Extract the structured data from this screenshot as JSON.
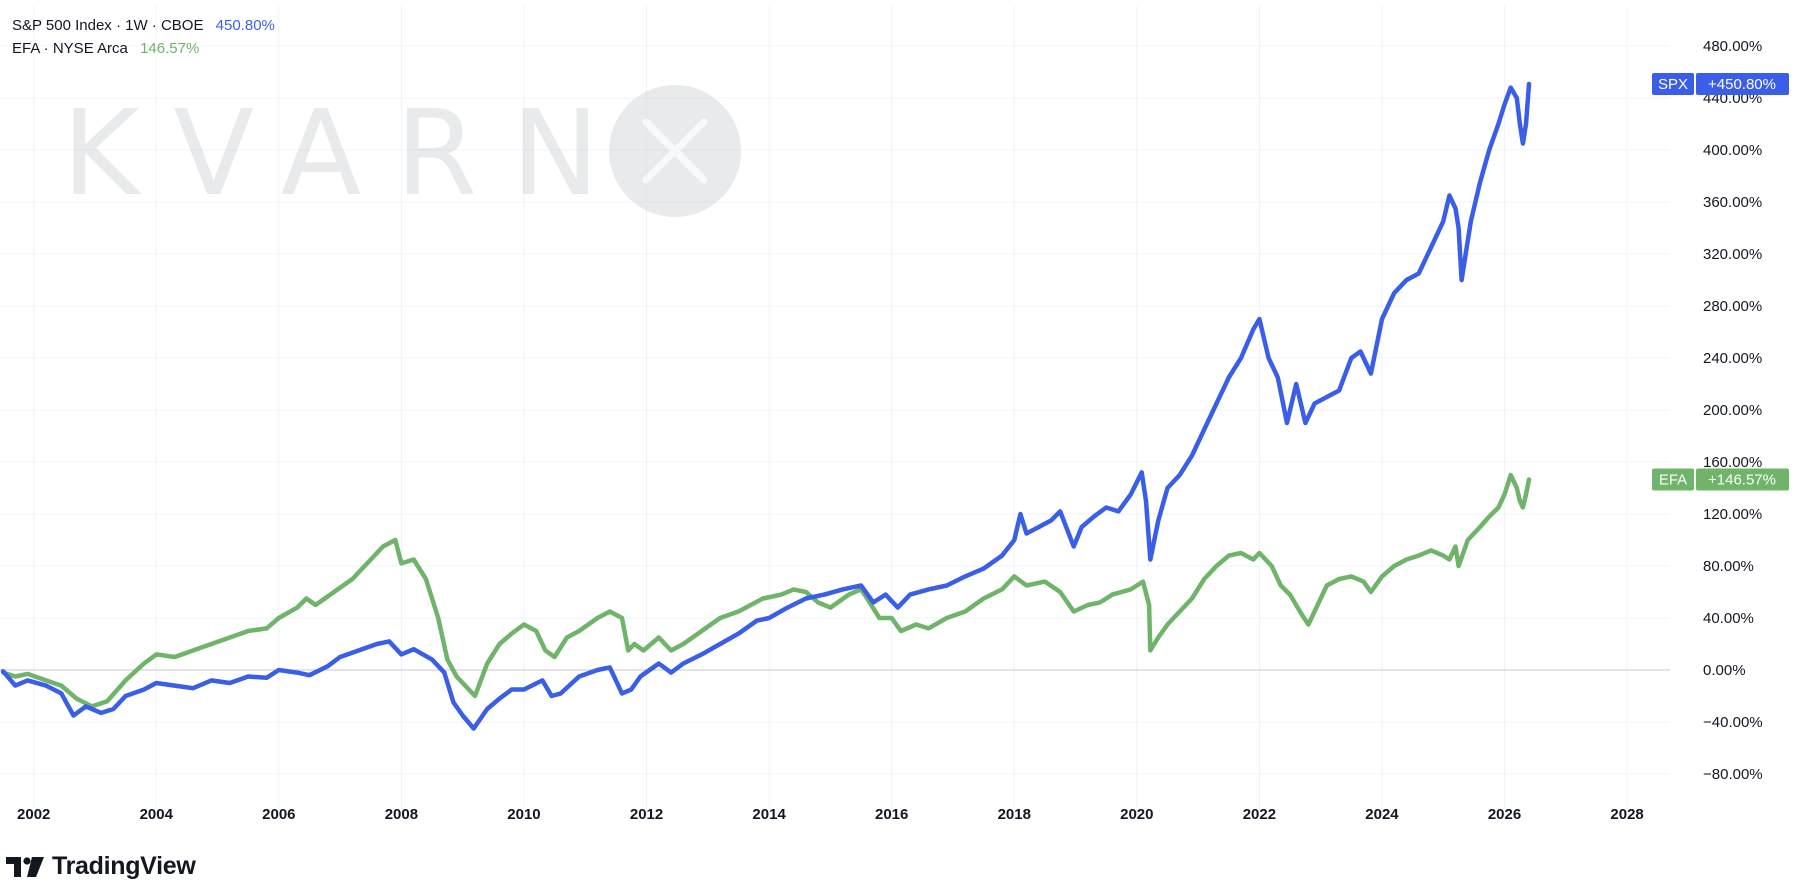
{
  "legend": {
    "spx": {
      "name": "S&P 500 Index · 1W · CBOE",
      "value": "450.80%"
    },
    "efa": {
      "name": "EFA · NYSE Arca",
      "value": "146.57%"
    }
  },
  "watermark": {
    "text": "KVARN"
  },
  "branding": {
    "logo_text": "TradingView"
  },
  "colors": {
    "spx": "#3a5ee8",
    "efa": "#6fb46a",
    "grid": "#f0f3fa",
    "zero_line": "#c8c9cc"
  },
  "chart_data": {
    "type": "line",
    "title": "",
    "xlabel": "",
    "ylabel": "",
    "x_ticks": [
      "2002",
      "2004",
      "2006",
      "2008",
      "2010",
      "2012",
      "2014",
      "2016",
      "2018",
      "2020",
      "2022",
      "2024",
      "2026",
      "2028"
    ],
    "y_ticks": [
      "480.00%",
      "440.00%",
      "400.00%",
      "360.00%",
      "320.00%",
      "280.00%",
      "240.00%",
      "200.00%",
      "160.00%",
      "120.00%",
      "80.00%",
      "40.00%",
      "0.00%",
      "−40.00%",
      "−80.00%"
    ],
    "xlim": [
      2001.45,
      2028.7
    ],
    "ylim": [
      -100,
      500
    ],
    "grid": true,
    "series": [
      {
        "name": "SPX",
        "badge": "+450.80%",
        "points": [
          [
            2001.5,
            -1
          ],
          [
            2001.7,
            -12
          ],
          [
            2001.9,
            -8
          ],
          [
            2002.2,
            -12
          ],
          [
            2002.45,
            -18
          ],
          [
            2002.65,
            -35
          ],
          [
            2002.85,
            -28
          ],
          [
            2003.1,
            -33
          ],
          [
            2003.3,
            -30
          ],
          [
            2003.5,
            -20
          ],
          [
            2003.8,
            -15
          ],
          [
            2004.0,
            -10
          ],
          [
            2004.3,
            -12
          ],
          [
            2004.6,
            -14
          ],
          [
            2004.9,
            -8
          ],
          [
            2005.2,
            -10
          ],
          [
            2005.5,
            -5
          ],
          [
            2005.8,
            -6
          ],
          [
            2006.0,
            0
          ],
          [
            2006.3,
            -2
          ],
          [
            2006.5,
            -4
          ],
          [
            2006.8,
            3
          ],
          [
            2007.0,
            10
          ],
          [
            2007.3,
            15
          ],
          [
            2007.6,
            20
          ],
          [
            2007.8,
            22
          ],
          [
            2008.0,
            12
          ],
          [
            2008.2,
            16
          ],
          [
            2008.5,
            8
          ],
          [
            2008.7,
            -2
          ],
          [
            2008.85,
            -25
          ],
          [
            2009.0,
            -35
          ],
          [
            2009.18,
            -45
          ],
          [
            2009.4,
            -30
          ],
          [
            2009.6,
            -22
          ],
          [
            2009.8,
            -15
          ],
          [
            2010.0,
            -15
          ],
          [
            2010.3,
            -8
          ],
          [
            2010.45,
            -20
          ],
          [
            2010.6,
            -18
          ],
          [
            2010.9,
            -5
          ],
          [
            2011.2,
            0
          ],
          [
            2011.4,
            2
          ],
          [
            2011.6,
            -18
          ],
          [
            2011.75,
            -15
          ],
          [
            2011.9,
            -5
          ],
          [
            2012.2,
            5
          ],
          [
            2012.4,
            -2
          ],
          [
            2012.6,
            5
          ],
          [
            2012.9,
            12
          ],
          [
            2013.2,
            20
          ],
          [
            2013.5,
            28
          ],
          [
            2013.8,
            38
          ],
          [
            2014.0,
            40
          ],
          [
            2014.3,
            48
          ],
          [
            2014.6,
            55
          ],
          [
            2014.9,
            58
          ],
          [
            2015.2,
            62
          ],
          [
            2015.5,
            65
          ],
          [
            2015.7,
            52
          ],
          [
            2015.9,
            58
          ],
          [
            2016.1,
            48
          ],
          [
            2016.3,
            58
          ],
          [
            2016.6,
            62
          ],
          [
            2016.9,
            65
          ],
          [
            2017.2,
            72
          ],
          [
            2017.5,
            78
          ],
          [
            2017.8,
            88
          ],
          [
            2018.0,
            100
          ],
          [
            2018.1,
            120
          ],
          [
            2018.2,
            105
          ],
          [
            2018.4,
            110
          ],
          [
            2018.6,
            115
          ],
          [
            2018.75,
            122
          ],
          [
            2018.97,
            95
          ],
          [
            2019.1,
            110
          ],
          [
            2019.3,
            118
          ],
          [
            2019.5,
            125
          ],
          [
            2019.7,
            122
          ],
          [
            2019.9,
            135
          ],
          [
            2020.08,
            152
          ],
          [
            2020.15,
            130
          ],
          [
            2020.22,
            85
          ],
          [
            2020.35,
            115
          ],
          [
            2020.5,
            140
          ],
          [
            2020.7,
            150
          ],
          [
            2020.9,
            165
          ],
          [
            2021.1,
            185
          ],
          [
            2021.3,
            205
          ],
          [
            2021.5,
            225
          ],
          [
            2021.7,
            240
          ],
          [
            2021.9,
            262
          ],
          [
            2022.0,
            270
          ],
          [
            2022.15,
            240
          ],
          [
            2022.3,
            225
          ],
          [
            2022.45,
            190
          ],
          [
            2022.6,
            220
          ],
          [
            2022.75,
            190
          ],
          [
            2022.9,
            205
          ],
          [
            2023.1,
            210
          ],
          [
            2023.3,
            215
          ],
          [
            2023.5,
            240
          ],
          [
            2023.65,
            245
          ],
          [
            2023.82,
            228
          ],
          [
            2024.0,
            270
          ],
          [
            2024.2,
            290
          ],
          [
            2024.4,
            300
          ],
          [
            2024.6,
            305
          ],
          [
            2024.8,
            325
          ],
          [
            2025.0,
            345
          ],
          [
            2025.1,
            365
          ],
          [
            2025.2,
            355
          ],
          [
            2025.25,
            340
          ],
          [
            2025.3,
            300
          ],
          [
            2025.45,
            345
          ],
          [
            2025.6,
            375
          ],
          [
            2025.75,
            400
          ],
          [
            2025.9,
            420
          ],
          [
            2026.0,
            435
          ],
          [
            2026.1,
            448
          ],
          [
            2026.2,
            440
          ],
          [
            2026.25,
            420
          ],
          [
            2026.3,
            405
          ],
          [
            2026.35,
            420
          ],
          [
            2026.4,
            450.8
          ]
        ]
      },
      {
        "name": "EFA",
        "badge": "+146.57%",
        "points": [
          [
            2001.5,
            -2
          ],
          [
            2001.7,
            -5
          ],
          [
            2001.9,
            -3
          ],
          [
            2002.2,
            -8
          ],
          [
            2002.45,
            -12
          ],
          [
            2002.7,
            -22
          ],
          [
            2002.95,
            -28
          ],
          [
            2003.2,
            -24
          ],
          [
            2003.5,
            -8
          ],
          [
            2003.8,
            5
          ],
          [
            2004.0,
            12
          ],
          [
            2004.3,
            10
          ],
          [
            2004.6,
            15
          ],
          [
            2004.9,
            20
          ],
          [
            2005.2,
            25
          ],
          [
            2005.5,
            30
          ],
          [
            2005.8,
            32
          ],
          [
            2006.0,
            40
          ],
          [
            2006.3,
            48
          ],
          [
            2006.45,
            55
          ],
          [
            2006.6,
            50
          ],
          [
            2006.9,
            60
          ],
          [
            2007.2,
            70
          ],
          [
            2007.5,
            85
          ],
          [
            2007.7,
            95
          ],
          [
            2007.9,
            100
          ],
          [
            2008.0,
            82
          ],
          [
            2008.2,
            85
          ],
          [
            2008.4,
            70
          ],
          [
            2008.6,
            40
          ],
          [
            2008.75,
            8
          ],
          [
            2008.9,
            -5
          ],
          [
            2009.1,
            -15
          ],
          [
            2009.2,
            -20
          ],
          [
            2009.4,
            5
          ],
          [
            2009.6,
            20
          ],
          [
            2009.8,
            28
          ],
          [
            2010.0,
            35
          ],
          [
            2010.2,
            30
          ],
          [
            2010.35,
            15
          ],
          [
            2010.5,
            10
          ],
          [
            2010.7,
            25
          ],
          [
            2010.9,
            30
          ],
          [
            2011.2,
            40
          ],
          [
            2011.4,
            45
          ],
          [
            2011.6,
            40
          ],
          [
            2011.7,
            15
          ],
          [
            2011.8,
            20
          ],
          [
            2011.95,
            15
          ],
          [
            2012.2,
            25
          ],
          [
            2012.4,
            15
          ],
          [
            2012.6,
            20
          ],
          [
            2012.9,
            30
          ],
          [
            2013.2,
            40
          ],
          [
            2013.5,
            45
          ],
          [
            2013.7,
            50
          ],
          [
            2013.9,
            55
          ],
          [
            2014.2,
            58
          ],
          [
            2014.4,
            62
          ],
          [
            2014.6,
            60
          ],
          [
            2014.8,
            52
          ],
          [
            2015.0,
            48
          ],
          [
            2015.3,
            58
          ],
          [
            2015.5,
            62
          ],
          [
            2015.6,
            55
          ],
          [
            2015.8,
            40
          ],
          [
            2016.0,
            40
          ],
          [
            2016.15,
            30
          ],
          [
            2016.4,
            35
          ],
          [
            2016.6,
            32
          ],
          [
            2016.9,
            40
          ],
          [
            2017.2,
            45
          ],
          [
            2017.5,
            55
          ],
          [
            2017.8,
            62
          ],
          [
            2018.0,
            72
          ],
          [
            2018.2,
            65
          ],
          [
            2018.5,
            68
          ],
          [
            2018.75,
            60
          ],
          [
            2018.97,
            45
          ],
          [
            2019.2,
            50
          ],
          [
            2019.4,
            52
          ],
          [
            2019.6,
            58
          ],
          [
            2019.9,
            62
          ],
          [
            2020.1,
            68
          ],
          [
            2020.2,
            50
          ],
          [
            2020.22,
            15
          ],
          [
            2020.35,
            25
          ],
          [
            2020.5,
            35
          ],
          [
            2020.7,
            45
          ],
          [
            2020.9,
            55
          ],
          [
            2021.1,
            70
          ],
          [
            2021.3,
            80
          ],
          [
            2021.5,
            88
          ],
          [
            2021.7,
            90
          ],
          [
            2021.9,
            85
          ],
          [
            2022.0,
            90
          ],
          [
            2022.2,
            80
          ],
          [
            2022.35,
            65
          ],
          [
            2022.5,
            58
          ],
          [
            2022.7,
            42
          ],
          [
            2022.8,
            35
          ],
          [
            2022.95,
            50
          ],
          [
            2023.1,
            65
          ],
          [
            2023.3,
            70
          ],
          [
            2023.5,
            72
          ],
          [
            2023.7,
            68
          ],
          [
            2023.82,
            60
          ],
          [
            2024.0,
            72
          ],
          [
            2024.2,
            80
          ],
          [
            2024.4,
            85
          ],
          [
            2024.6,
            88
          ],
          [
            2024.8,
            92
          ],
          [
            2025.0,
            88
          ],
          [
            2025.1,
            85
          ],
          [
            2025.2,
            95
          ],
          [
            2025.25,
            80
          ],
          [
            2025.4,
            100
          ],
          [
            2025.6,
            110
          ],
          [
            2025.75,
            118
          ],
          [
            2025.9,
            125
          ],
          [
            2026.0,
            135
          ],
          [
            2026.1,
            150
          ],
          [
            2026.2,
            140
          ],
          [
            2026.25,
            130
          ],
          [
            2026.3,
            125
          ],
          [
            2026.35,
            135
          ],
          [
            2026.4,
            146.57
          ]
        ]
      }
    ]
  }
}
